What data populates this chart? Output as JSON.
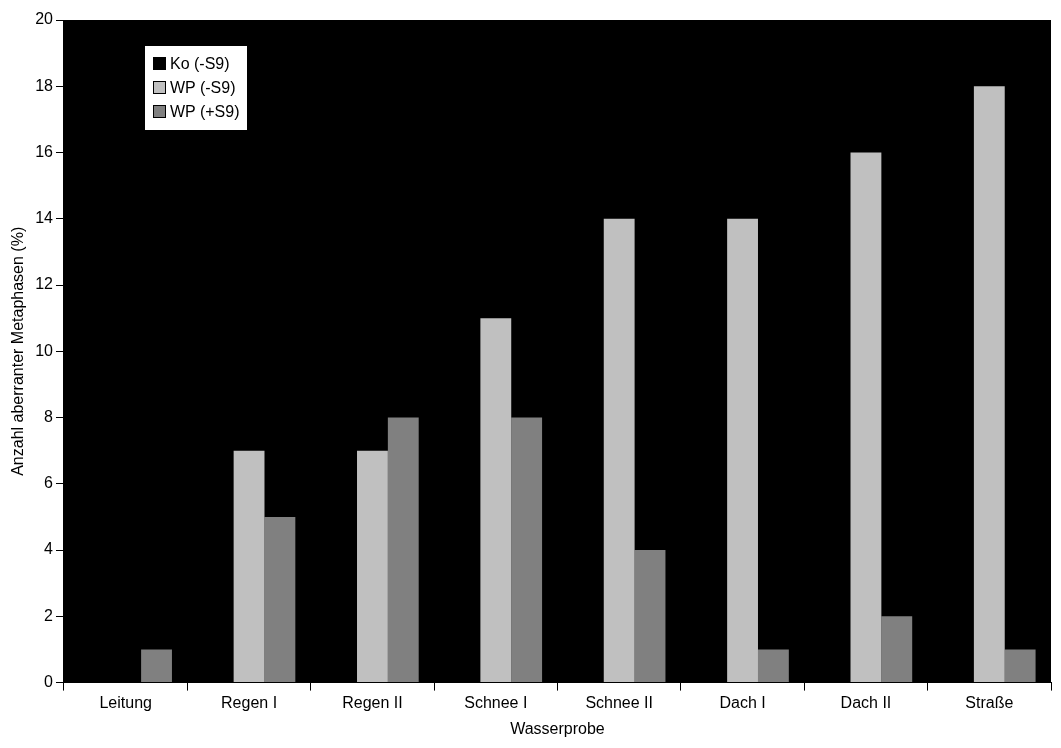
{
  "chart_data": {
    "type": "bar",
    "xlabel": "Wasserprobe",
    "ylabel": "Anzahl aberranter Metaphasen (%)",
    "categories": [
      "Leitung",
      "Regen I",
      "Regen II",
      "Schnee I",
      "Schnee II",
      "Dach I",
      "Dach II",
      "Straße"
    ],
    "series": [
      {
        "name": "Ko (-S9)",
        "color": "#000000",
        "values": [
          null,
          null,
          null,
          null,
          null,
          null,
          null,
          null
        ]
      },
      {
        "name": "WP (-S9)",
        "color": "#c0c0c0",
        "values": [
          null,
          7,
          7,
          11,
          14,
          14,
          16,
          18
        ]
      },
      {
        "name": "WP (+S9)",
        "color": "#808080",
        "values": [
          1,
          5,
          8,
          8,
          4,
          1,
          2,
          1
        ]
      }
    ],
    "ylim": [
      0,
      20
    ],
    "yticks": [
      0,
      2,
      4,
      6,
      8,
      10,
      12,
      14,
      16,
      18,
      20
    ],
    "legend": "top left"
  }
}
